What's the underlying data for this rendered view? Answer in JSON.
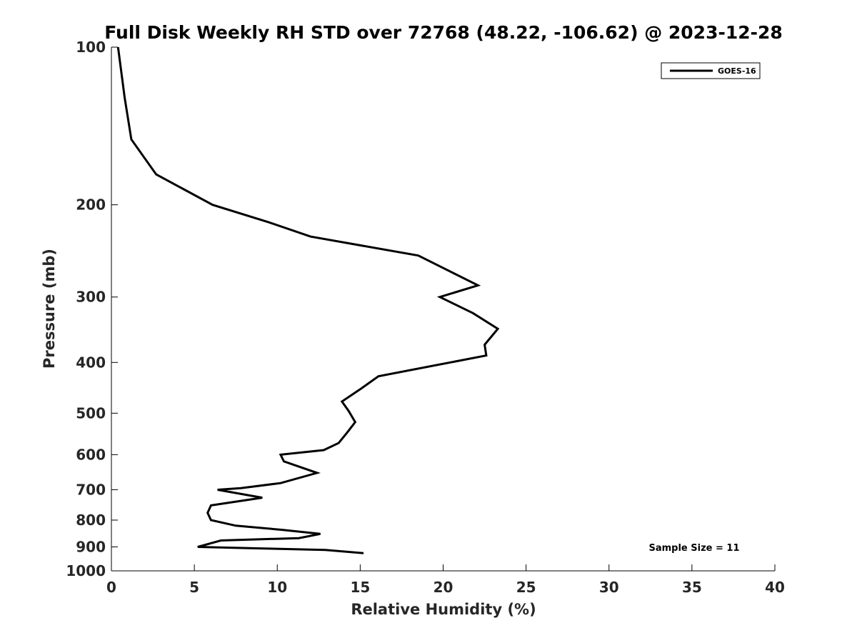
{
  "chart_data": {
    "type": "line",
    "title": "Full Disk Weekly RH STD over 72768 (48.22, -106.62) @ 2023-12-28",
    "xlabel": "Relative Humidity (%)",
    "ylabel": "Pressure (mb)",
    "xlim": [
      0,
      40
    ],
    "ylim": [
      100,
      1000
    ],
    "yscale": "log",
    "y_reversed": true,
    "xticks": [
      "0",
      "5",
      "10",
      "15",
      "20",
      "25",
      "30",
      "35",
      "40"
    ],
    "xtick_values": [
      0,
      5,
      10,
      15,
      20,
      25,
      30,
      35,
      40
    ],
    "yticks": [
      "100",
      "200",
      "300",
      "400",
      "500",
      "600",
      "700",
      "800",
      "900",
      "1000"
    ],
    "ytick_values": [
      100,
      200,
      300,
      400,
      500,
      600,
      700,
      800,
      900,
      1000
    ],
    "grid": false,
    "legend_position": "top-right",
    "series": [
      {
        "name": "GOES-16",
        "color": "#000000",
        "points": [
          [
            0.4,
            100
          ],
          [
            0.8,
            125
          ],
          [
            1.2,
            150
          ],
          [
            2.7,
            175
          ],
          [
            6.1,
            200
          ],
          [
            9.5,
            216
          ],
          [
            12.0,
            230
          ],
          [
            18.5,
            250
          ],
          [
            22.1,
            285
          ],
          [
            19.8,
            300
          ],
          [
            21.8,
            322
          ],
          [
            23.3,
            345
          ],
          [
            22.5,
            370
          ],
          [
            22.6,
            388
          ],
          [
            16.1,
            425
          ],
          [
            15.0,
            450
          ],
          [
            13.9,
            475
          ],
          [
            14.3,
            495
          ],
          [
            14.7,
            520
          ],
          [
            14.2,
            545
          ],
          [
            13.7,
            570
          ],
          [
            12.8,
            588
          ],
          [
            10.2,
            600
          ],
          [
            10.4,
            618
          ],
          [
            12.4,
            650
          ],
          [
            10.2,
            680
          ],
          [
            7.8,
            695
          ],
          [
            6.4,
            700
          ],
          [
            9.1,
            725
          ],
          [
            6.0,
            750
          ],
          [
            5.8,
            775
          ],
          [
            6.0,
            800
          ],
          [
            7.5,
            820
          ],
          [
            10.3,
            835
          ],
          [
            12.6,
            850
          ],
          [
            11.3,
            866
          ],
          [
            6.6,
            875
          ],
          [
            5.2,
            900
          ],
          [
            9.0,
            906
          ],
          [
            12.9,
            912
          ],
          [
            15.2,
            925
          ]
        ]
      }
    ],
    "annotations": [
      "Sample Size = 11"
    ]
  }
}
